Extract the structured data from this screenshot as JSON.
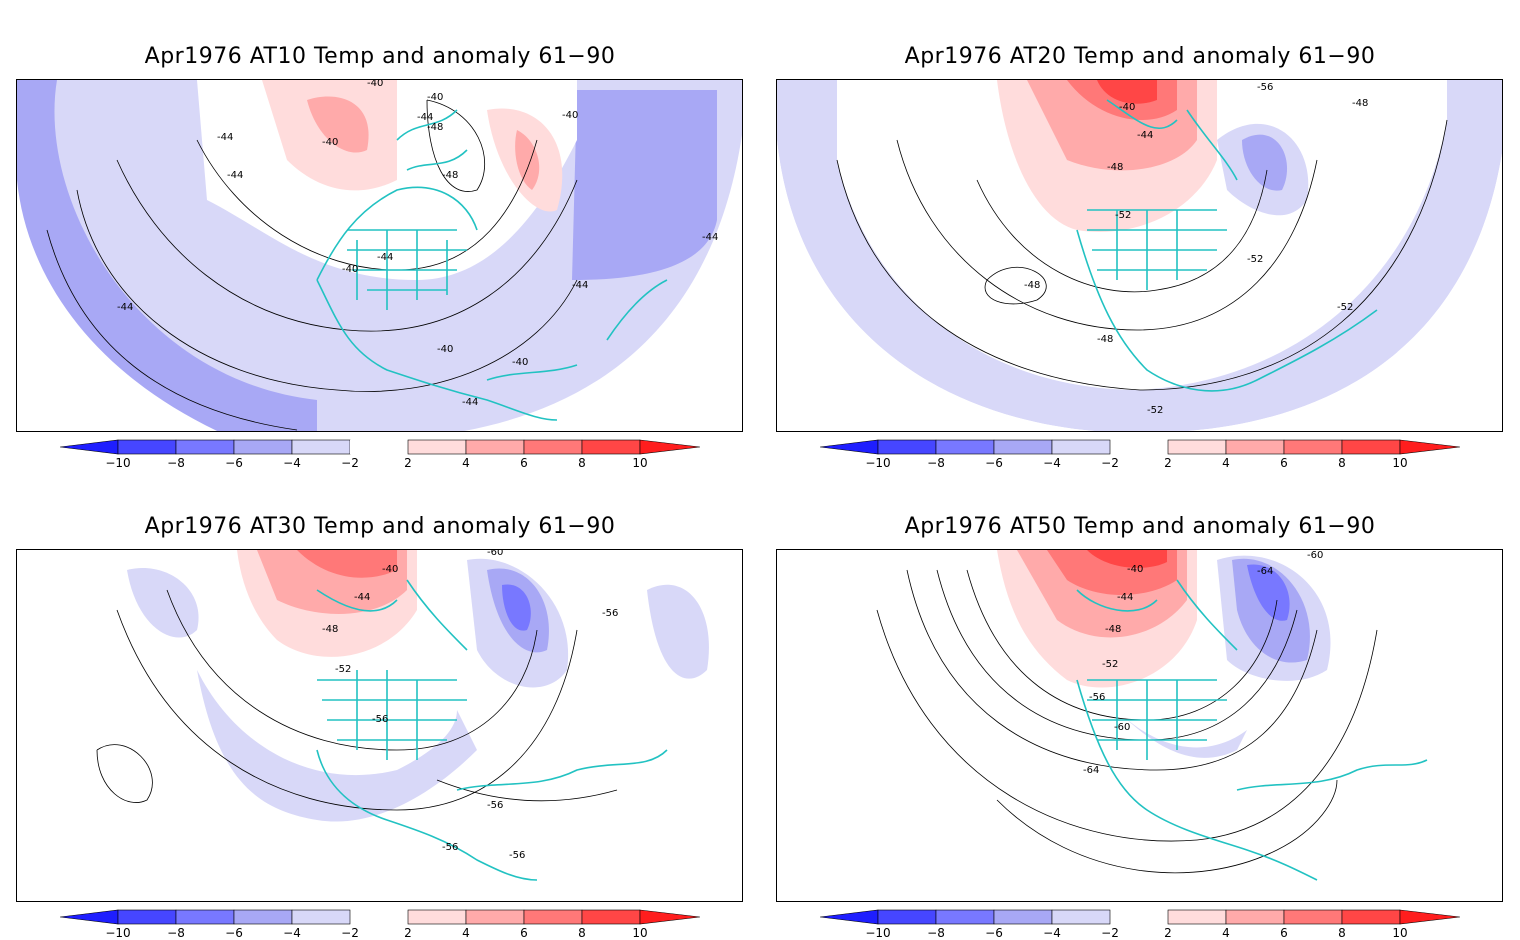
{
  "colors": {
    "neg10": "#1e1eff",
    "neg8": "#4646ff",
    "neg6": "#7878ff",
    "neg4": "#a8a8f5",
    "neg2": "#d8d8f8",
    "pos2": "#ffdcdc",
    "pos4": "#ffaaaa",
    "pos6": "#ff7878",
    "pos8": "#ff4646",
    "pos10": "#ff1e1e",
    "coast": "#22c2c2",
    "contour": "#000000"
  },
  "colorbar": {
    "labels": [
      "−10",
      "−8",
      "−6",
      "−4",
      "−2",
      "2",
      "4",
      "6",
      "8",
      "10"
    ],
    "levels": [
      -10,
      -8,
      -6,
      -4,
      -2,
      2,
      4,
      6,
      8,
      10
    ]
  },
  "panels": [
    {
      "title": "Apr1976 AT10 Temp and anomaly 61−90",
      "contour_labels": [
        "−40",
        "−44",
        "−40",
        "−44",
        "−48",
        "−40",
        "−44",
        "−40",
        "−48",
        "−44",
        "−40",
        "−44",
        "−44",
        "−40",
        "−40",
        "−44",
        "−44"
      ]
    },
    {
      "title": "Apr1976 AT20 Temp and anomaly 61−90",
      "contour_labels": [
        "−40",
        "−56",
        "−48",
        "−44",
        "−48",
        "−52",
        "−52",
        "−48",
        "−48",
        "−52",
        "−52"
      ]
    },
    {
      "title": "Apr1976 AT30 Temp and anomaly 61−90",
      "contour_labels": [
        "−60",
        "−40",
        "−44",
        "−56",
        "−48",
        "−52",
        "−56",
        "−56",
        "−56",
        "−56"
      ]
    },
    {
      "title": "Apr1976 AT50 Temp and anomaly 61−90",
      "contour_labels": [
        "−60",
        "−40",
        "−64",
        "−44",
        "−48",
        "−52",
        "−56",
        "−60",
        "−64"
      ]
    }
  ]
}
